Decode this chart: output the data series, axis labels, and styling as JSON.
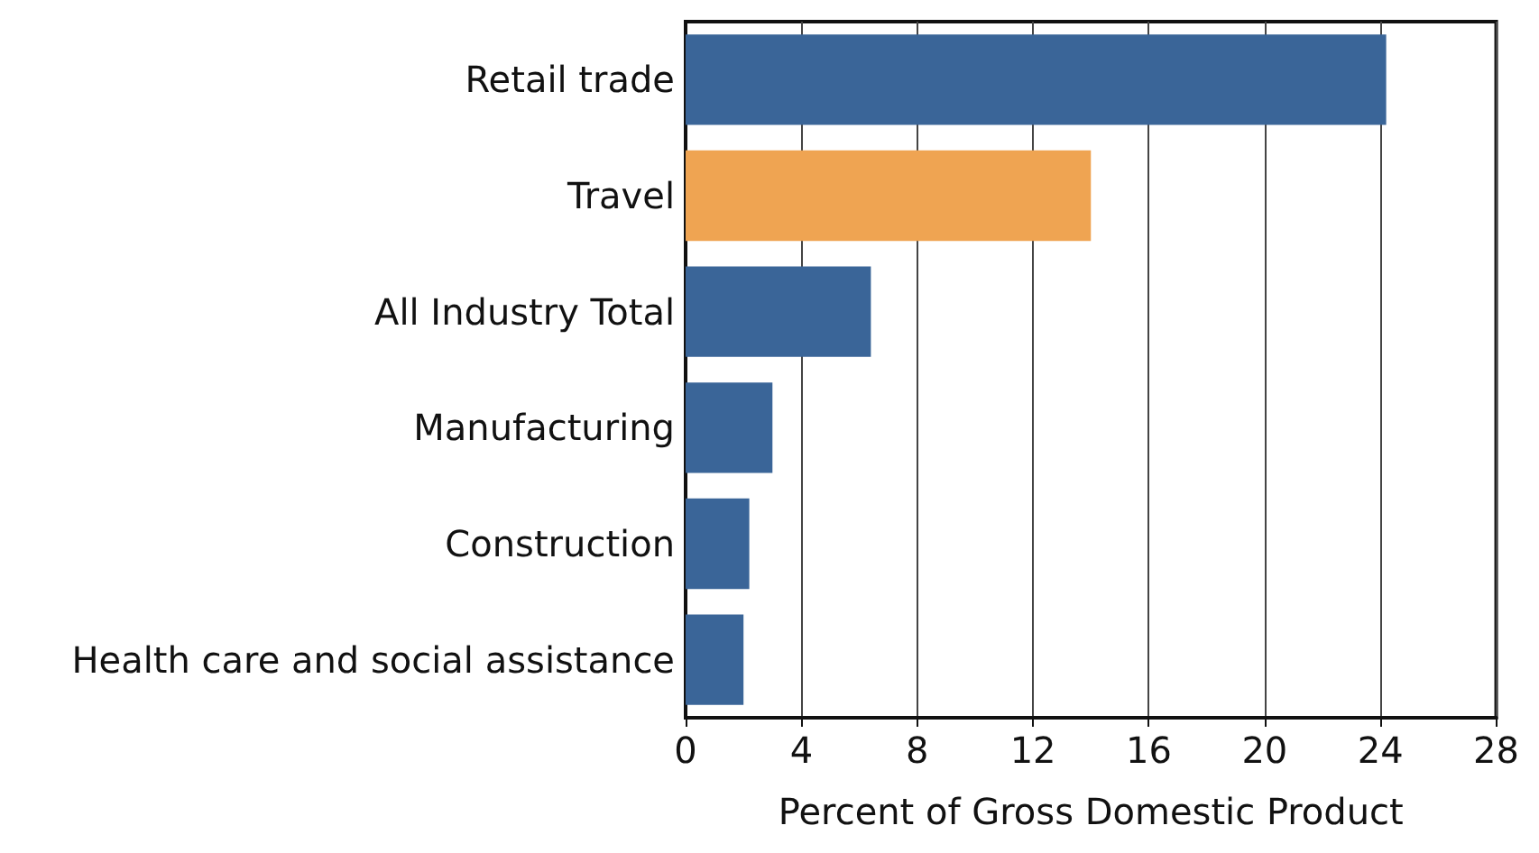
{
  "chart_data": {
    "type": "bar",
    "orientation": "horizontal",
    "xlabel": "Percent of Gross Domestic Product",
    "categories": [
      "Retail trade",
      "Travel",
      "All Industry Total",
      "Manufacturing",
      "Construction",
      "Health care and social assistance"
    ],
    "values": [
      24.2,
      14.0,
      6.4,
      3.0,
      2.2,
      2.0
    ],
    "colors": [
      "#3a6598",
      "#efa452",
      "#3a6598",
      "#3a6598",
      "#3a6598",
      "#3a6598"
    ],
    "xlim": [
      0,
      28
    ],
    "xticks": [
      0,
      4,
      8,
      12,
      16,
      20,
      24,
      28
    ],
    "grid": "x"
  }
}
